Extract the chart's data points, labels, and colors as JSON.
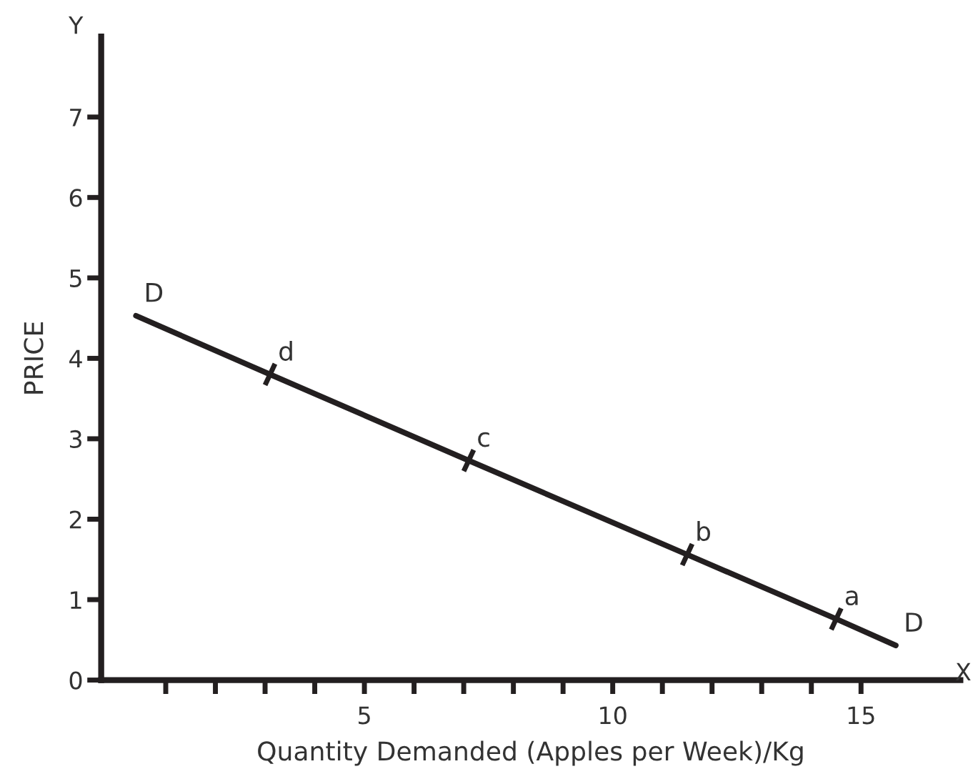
{
  "chart_data": {
    "type": "line",
    "xlabel": "Quantity Demanded (Apples per Week)/Kg",
    "ylabel": "PRICE",
    "xlim": [
      -0.3,
      17.0
    ],
    "ylim": [
      0,
      8.0
    ],
    "xticks": [
      {
        "value": 1,
        "label": null
      },
      {
        "value": 2,
        "label": null
      },
      {
        "value": 3,
        "label": null
      },
      {
        "value": 4,
        "label": null
      },
      5,
      {
        "value": 6,
        "label": null
      },
      {
        "value": 7,
        "label": null
      },
      {
        "value": 8,
        "label": null
      },
      {
        "value": 9,
        "label": null
      },
      10,
      {
        "value": 11,
        "label": null
      },
      {
        "value": 12,
        "label": null
      },
      {
        "value": 13,
        "label": null
      },
      {
        "value": 14,
        "label": null
      },
      15
    ],
    "yticks": [
      0,
      1,
      2,
      3,
      4,
      5,
      6,
      7
    ],
    "grid": false,
    "legend": false,
    "series": [
      {
        "color": "#231f20",
        "x": [
          0.4,
          3.1,
          7.1,
          11.5,
          14.5,
          15.7
        ],
        "values": [
          4.53,
          3.8,
          2.73,
          1.56,
          0.76,
          0.43
        ]
      },
      {
        "type": "scatter",
        "color": "#231f20",
        "x": [
          3.1,
          7.1,
          11.5,
          14.5
        ],
        "values": [
          3.8,
          2.73,
          1.56,
          0.76
        ]
      }
    ],
    "annotations": [
      {
        "text": "D",
        "x": 0.4,
        "y": 4.53
      },
      {
        "text": "d",
        "x": 3.1,
        "y": 3.8
      },
      {
        "text": "c",
        "x": 7.1,
        "y": 2.73
      },
      {
        "text": "b",
        "x": 11.5,
        "y": 1.56
      },
      {
        "text": "a",
        "x": 14.5,
        "y": 0.76
      },
      {
        "text": "D",
        "x": 15.7,
        "y": 0.43
      },
      "X",
      "Y"
    ]
  }
}
